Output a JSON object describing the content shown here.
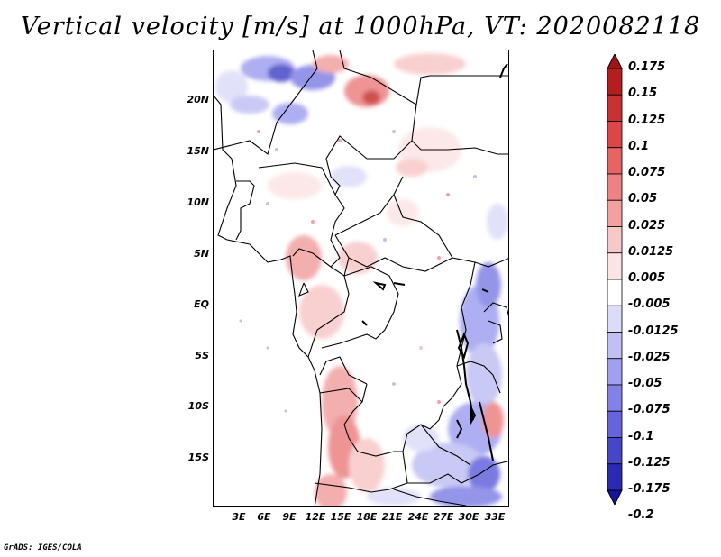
{
  "title": "Vertical velocity [m/s] at 1000hPa, VT: 2020082118",
  "credit": "GrADS: IGES/COLA",
  "latitude_labels": [
    "20N",
    "15N",
    "10N",
    "5N",
    "EQ",
    "5S",
    "10S",
    "15S"
  ],
  "longitude_labels": [
    "3E",
    "6E",
    "9E",
    "12E",
    "15E",
    "18E",
    "21E",
    "24E",
    "27E",
    "30E",
    "33E"
  ],
  "colorbar": {
    "labels": [
      "0.175",
      "0.15",
      "0.125",
      "0.1",
      "0.075",
      "0.05",
      "0.025",
      "0.0125",
      "0.005",
      "-0.005",
      "-0.0125",
      "-0.025",
      "-0.05",
      "-0.075",
      "-0.1",
      "-0.125",
      "-0.175",
      "-0.2"
    ],
    "colors": [
      "#a01414",
      "#b41e1e",
      "#c83232",
      "#dc4646",
      "#e66464",
      "#ec8282",
      "#f2a0a0",
      "#f8c8c8",
      "#fce4e4",
      "#ffffff",
      "#dcdcf8",
      "#c0c0f4",
      "#a0a0f0",
      "#8282e6",
      "#6464dc",
      "#4646c8",
      "#2a2ab4",
      "#1414a0"
    ]
  },
  "map": {
    "region": "Central Africa",
    "lon_range": [
      0,
      34.5
    ],
    "lat_range": [
      -20,
      24.5
    ]
  }
}
